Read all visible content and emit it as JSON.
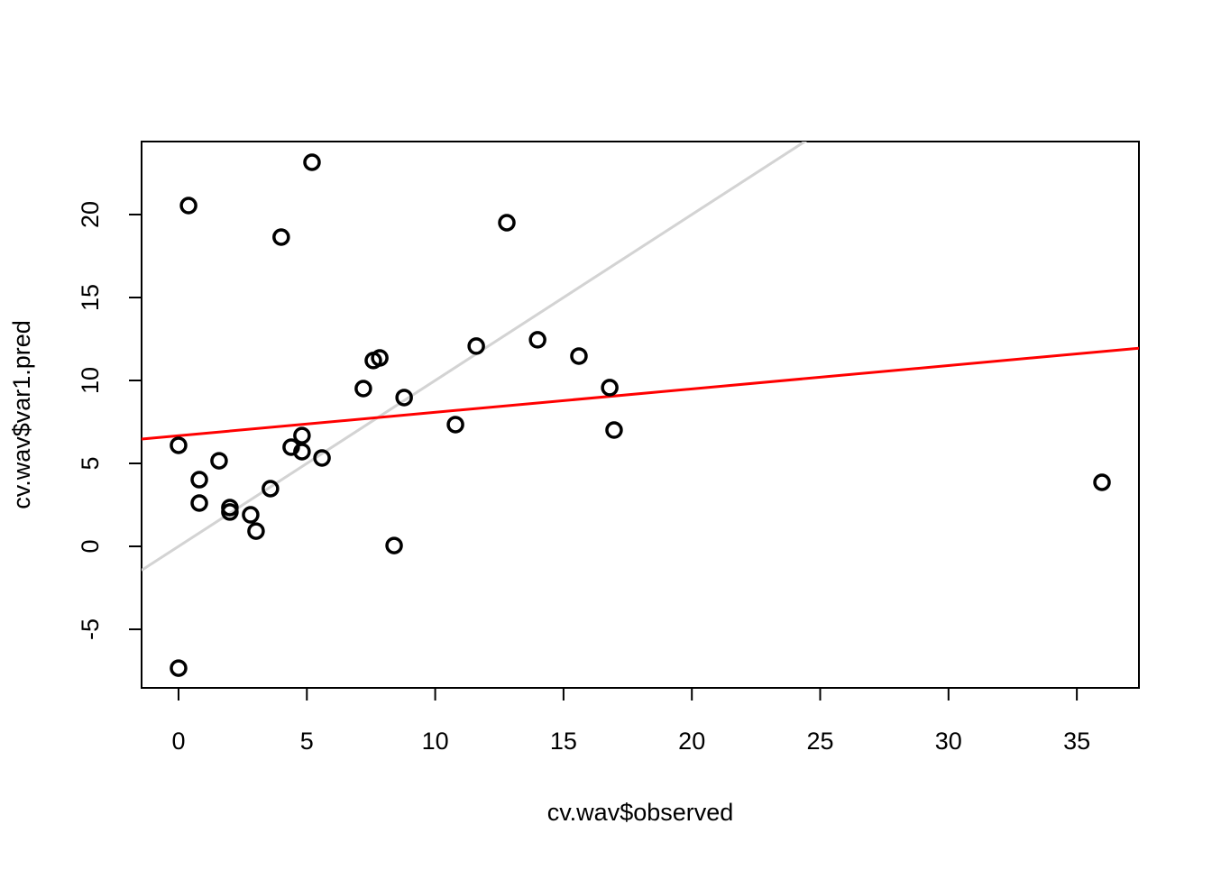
{
  "chart_data": {
    "type": "scatter",
    "xlabel": "cv.wav$observed",
    "ylabel": "cv.wav$var1.pred",
    "x": [
      0,
      0,
      0.39,
      0.81,
      0.81,
      1.58,
      2.0,
      2.0,
      2.81,
      3.02,
      3.58,
      4.0,
      4.39,
      4.81,
      4.81,
      5.2,
      5.59,
      7.2,
      7.59,
      7.84,
      8.4,
      8.79,
      10.79,
      11.6,
      12.79,
      13.99,
      15.6,
      16.8,
      16.97,
      35.98
    ],
    "values": [
      -7.34,
      6.09,
      20.54,
      4.02,
      2.61,
      5.16,
      2.34,
      2.07,
      1.9,
      0.92,
      3.48,
      18.64,
      5.98,
      6.68,
      5.71,
      23.15,
      5.33,
      9.51,
      11.2,
      11.36,
      0.05,
      8.97,
      7.34,
      12.07,
      19.51,
      12.45,
      11.47,
      9.57,
      7.01,
      3.86
    ],
    "color": "#000000",
    "lines": [
      {
        "intercept": 0,
        "slope": 1,
        "color": "#d3d3d3"
      },
      {
        "intercept": 6.67,
        "slope": 0.141,
        "color": "#ff0000"
      }
    ],
    "xlim": [
      -1.44,
      37.42
    ],
    "ylim": [
      -8.53,
      24.4
    ],
    "xticks": [
      0,
      5,
      10,
      15,
      20,
      25,
      30,
      35
    ],
    "yticks": [
      -5,
      0,
      5,
      10,
      15,
      20
    ]
  }
}
